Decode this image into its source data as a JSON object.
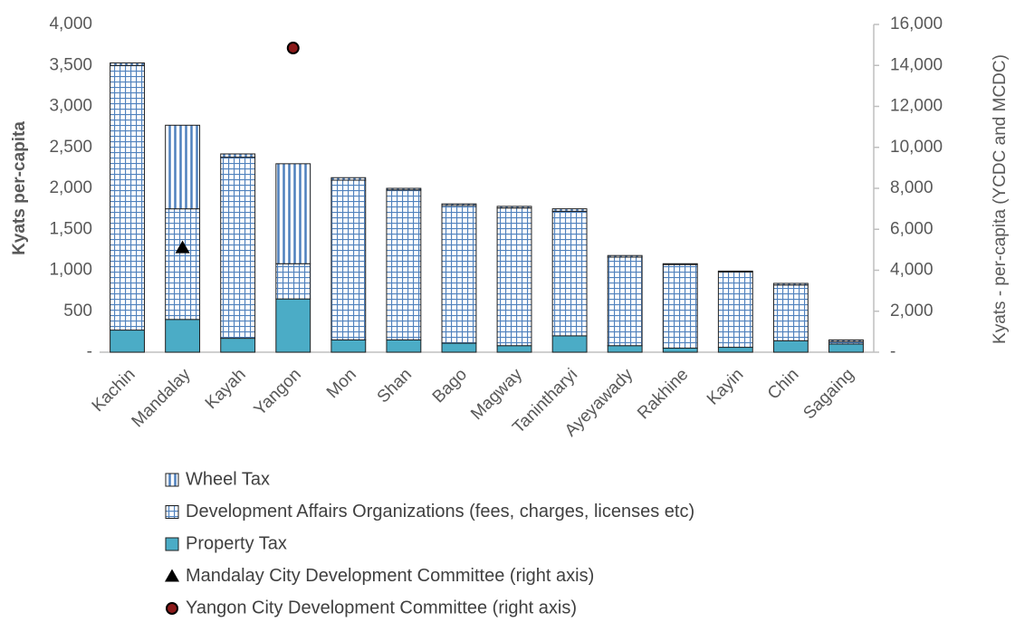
{
  "chart_data": {
    "type": "bar",
    "stacked": true,
    "y_label": "Kyats per-capita",
    "y2_label": "Kyats - per-capita (YCDC and MCDC)",
    "categories": [
      "Kachin",
      "Mandalay",
      "Kayah",
      "Yangon",
      "Mon",
      "Shan",
      "Bago",
      "Magway",
      "Tanintharyi",
      "Ayeyawady",
      "Rakhine",
      "Kayin",
      "Chin",
      "Sagaing"
    ],
    "series": [
      {
        "name": "Property Tax",
        "type": "bar",
        "pattern": "solid",
        "color": "#4bacc6",
        "values": [
          270,
          400,
          170,
          650,
          150,
          150,
          110,
          80,
          200,
          80,
          50,
          60,
          140,
          100
        ]
      },
      {
        "name": "Development Affairs Organizations (fees, charges, licenses etc)",
        "type": "bar",
        "pattern": "grid",
        "color": "#4f81bd",
        "values": [
          3230,
          1350,
          2210,
          430,
          1950,
          1830,
          1680,
          1680,
          1520,
          1080,
          1020,
          920,
          680,
          30
        ]
      },
      {
        "name": "Wheel Tax",
        "type": "bar",
        "pattern": "vertical",
        "color": "#4f81bd",
        "values": [
          30,
          1020,
          40,
          1220,
          30,
          20,
          20,
          20,
          30,
          20,
          10,
          10,
          20,
          20
        ]
      },
      {
        "name": "Mandalay City Development Committee (right axis)",
        "type": "scatter",
        "marker": "triangle",
        "color": "#000000",
        "axis": "y2",
        "values": [
          null,
          5100,
          null,
          null,
          null,
          null,
          null,
          null,
          null,
          null,
          null,
          null,
          null,
          null
        ]
      },
      {
        "name": "Yangon City Development Committee (right axis)",
        "type": "scatter",
        "marker": "circle",
        "color": "#8b1a1a",
        "axis": "y2",
        "values": [
          null,
          null,
          null,
          14850,
          null,
          null,
          null,
          null,
          null,
          null,
          null,
          null,
          null,
          null
        ]
      }
    ],
    "ylim": [
      0,
      4000
    ],
    "yticks": [
      {
        "value": 0,
        "label": "-"
      },
      500,
      {
        "value": 1000,
        "label": "1,000"
      },
      {
        "value": 1500,
        "label": "1,500"
      },
      {
        "value": 2000,
        "label": "2,000"
      },
      {
        "value": 2500,
        "label": "2,500"
      },
      {
        "value": 3000,
        "label": "3,000"
      },
      {
        "value": 3500,
        "label": "3,500"
      },
      {
        "value": 4000,
        "label": "4,000"
      }
    ],
    "y2lim": [
      0,
      16000
    ],
    "y2ticks": [
      {
        "value": 0,
        "label": "-"
      },
      {
        "value": 2000,
        "label": "2,000"
      },
      {
        "value": 4000,
        "label": "4,000"
      },
      {
        "value": 6000,
        "label": "6,000"
      },
      {
        "value": 8000,
        "label": "8,000"
      },
      {
        "value": 10000,
        "label": "10,000"
      },
      {
        "value": 12000,
        "label": "12,000"
      },
      {
        "value": 14000,
        "label": "14,000"
      },
      {
        "value": 16000,
        "label": "16,000"
      }
    ],
    "legend": "bottom"
  }
}
